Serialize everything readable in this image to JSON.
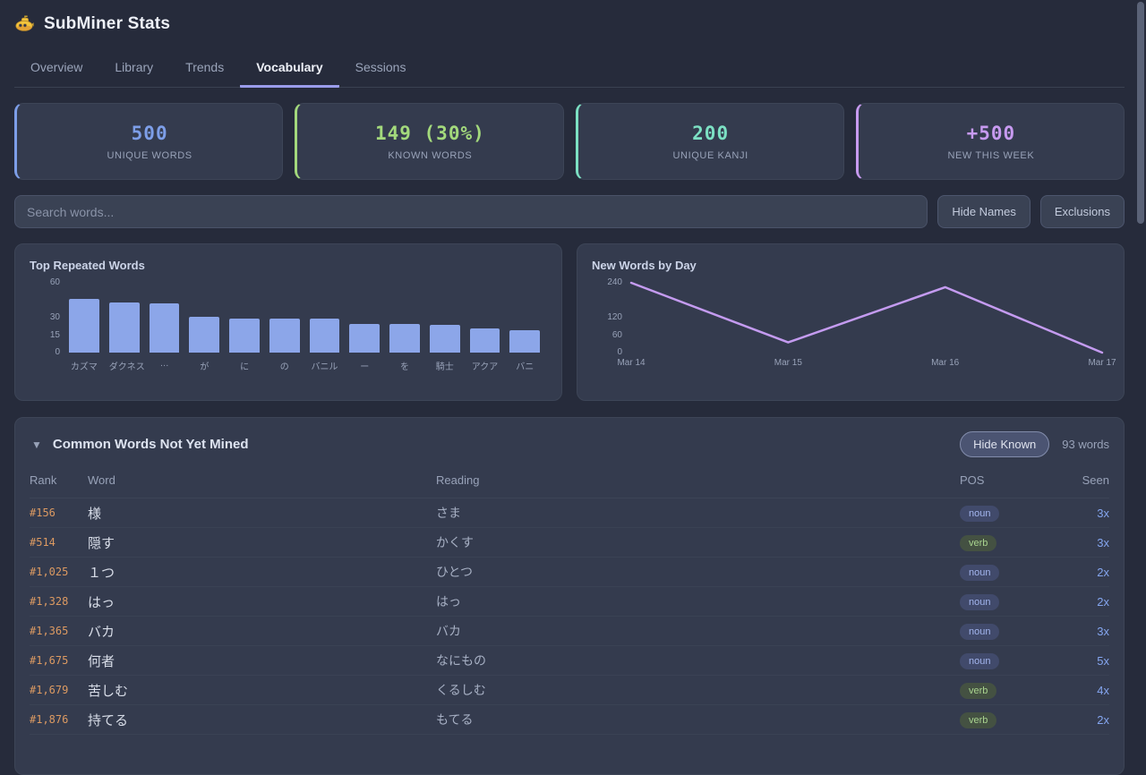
{
  "app": {
    "title": "SubMiner Stats"
  },
  "tabs": [
    {
      "label": "Overview",
      "active": false
    },
    {
      "label": "Library",
      "active": false
    },
    {
      "label": "Trends",
      "active": false
    },
    {
      "label": "Vocabulary",
      "active": true
    },
    {
      "label": "Sessions",
      "active": false
    }
  ],
  "stats": [
    {
      "value": "500",
      "label": "UNIQUE WORDS",
      "color": "#7d9ee8"
    },
    {
      "value": "149 (30%)",
      "label": "KNOWN WORDS",
      "color": "#a3d97c"
    },
    {
      "value": "200",
      "label": "UNIQUE KANJI",
      "color": "#7ce0c3"
    },
    {
      "value": "+500",
      "label": "NEW THIS WEEK",
      "color": "#c79af0"
    }
  ],
  "toolbar": {
    "search_placeholder": "Search words...",
    "hide_names_label": "Hide Names",
    "exclusions_label": "Exclusions"
  },
  "chart_data": [
    {
      "type": "bar",
      "title": "Top Repeated Words",
      "categories": [
        "カズマ",
        "ダクネス",
        "…",
        "が",
        "に",
        "の",
        "バニル",
        "ー",
        "を",
        "騎士",
        "アクア",
        "バニ"
      ],
      "values": [
        46,
        43,
        42,
        31,
        29,
        29,
        29,
        25,
        25,
        24,
        21,
        19
      ],
      "yticks": [
        0,
        15,
        30,
        60
      ],
      "ylim": [
        0,
        60
      ],
      "bar_color": "#8ca6e9",
      "grid": false,
      "legend": "none"
    },
    {
      "type": "line",
      "title": "New Words by Day",
      "x": [
        "Mar 14",
        "Mar 15",
        "Mar 16",
        "Mar 17"
      ],
      "values": [
        240,
        35,
        225,
        0
      ],
      "yticks": [
        0,
        60,
        120,
        240
      ],
      "ylim": [
        0,
        240
      ],
      "line_color": "#c49bf0",
      "grid": false,
      "legend": "none"
    }
  ],
  "table": {
    "collapse_icon": "▼",
    "title": "Common Words Not Yet Mined",
    "hide_known_label": "Hide Known",
    "count_label": "93 words",
    "columns": [
      "Rank",
      "Word",
      "Reading",
      "POS",
      "Seen"
    ],
    "pos_styles": {
      "noun": "pos-noun",
      "verb": "pos-verb"
    },
    "rows": [
      {
        "rank": "#156",
        "word": "様",
        "reading": "さま",
        "pos": "noun",
        "seen": "3x"
      },
      {
        "rank": "#514",
        "word": "隠す",
        "reading": "かくす",
        "pos": "verb",
        "seen": "3x"
      },
      {
        "rank": "#1,025",
        "word": "１つ",
        "reading": "ひとつ",
        "pos": "noun",
        "seen": "2x"
      },
      {
        "rank": "#1,328",
        "word": "はっ",
        "reading": "はっ",
        "pos": "noun",
        "seen": "2x"
      },
      {
        "rank": "#1,365",
        "word": "バカ",
        "reading": "バカ",
        "pos": "noun",
        "seen": "3x"
      },
      {
        "rank": "#1,675",
        "word": "何者",
        "reading": "なにもの",
        "pos": "noun",
        "seen": "5x"
      },
      {
        "rank": "#1,679",
        "word": "苦しむ",
        "reading": "くるしむ",
        "pos": "verb",
        "seen": "4x"
      },
      {
        "rank": "#1,876",
        "word": "持てる",
        "reading": "もてる",
        "pos": "verb",
        "seen": "2x"
      }
    ]
  }
}
